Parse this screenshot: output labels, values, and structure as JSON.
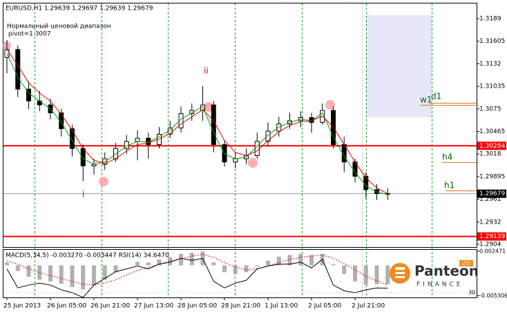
{
  "chart_data": {
    "type": "candlestick",
    "title": "EURUSD,H1  1.29639 1.29697 1.29639 1.29679",
    "annotations": [
      "Нормальный ценовой диапазон",
      "pivot=1.3007"
    ],
    "wave_labels": [
      "ii",
      "i"
    ],
    "level_labels": [
      "w1",
      "d1",
      "h4",
      "h1"
    ],
    "categories": [
      "25 Jun 2013",
      null,
      null,
      null,
      "26 Jun 05:00",
      null,
      null,
      null,
      "26 Jun 21:00",
      null,
      null,
      null,
      "27 Jun 13:00",
      null,
      null,
      null,
      "28 Jun 05:00",
      null,
      null,
      null,
      "28 Jun 21:00",
      null,
      null,
      null,
      "1 Jul 13:00",
      null,
      null,
      null,
      "2 Jul 05:00",
      null,
      null,
      null,
      "2 Jul 21:00",
      null,
      null,
      null
    ],
    "open": [
      1.314,
      1.315,
      1.31,
      1.3085,
      1.308,
      1.307,
      1.305,
      1.3025,
      1.3003,
      1.3005,
      1.3012,
      1.3025,
      1.3034,
      1.3038,
      1.303,
      1.3043,
      1.3051,
      1.3069,
      1.3073,
      1.308,
      1.303,
      1.3008,
      1.3012,
      1.3016,
      1.3034,
      1.3047,
      1.3056,
      1.306,
      1.3064,
      1.3058,
      1.3073,
      1.303,
      1.3008,
      1.299,
      1.2973,
      1.2968
    ],
    "high": [
      1.3162,
      1.3155,
      1.311,
      1.3098,
      1.3088,
      1.3075,
      1.3055,
      1.303,
      1.3012,
      1.302,
      1.3032,
      1.3042,
      1.3048,
      1.3045,
      1.3052,
      1.306,
      1.3078,
      1.3082,
      1.3104,
      1.3085,
      1.3035,
      1.302,
      1.3025,
      1.3045,
      1.3058,
      1.3065,
      1.307,
      1.3072,
      1.307,
      1.3082,
      1.3078,
      1.304,
      1.3012,
      1.2995,
      1.298,
      1.2975
    ],
    "low": [
      1.312,
      1.309,
      1.3075,
      1.3072,
      1.3062,
      1.304,
      1.3015,
      1.2984,
      1.2992,
      1.2998,
      1.3008,
      1.3018,
      1.301,
      1.3012,
      1.3025,
      1.3038,
      1.3045,
      1.306,
      1.306,
      1.302,
      1.3002,
      1.3,
      1.3005,
      1.3012,
      1.3028,
      1.304,
      1.305,
      1.3052,
      1.3045,
      1.3055,
      1.3025,
      1.2995,
      1.2982,
      1.2962,
      1.296,
      1.296
    ],
    "close": [
      1.315,
      1.31,
      1.3085,
      1.308,
      1.307,
      1.305,
      1.3025,
      1.3003,
      1.3005,
      1.3012,
      1.3025,
      1.3034,
      1.3038,
      1.303,
      1.3043,
      1.3051,
      1.3069,
      1.3073,
      1.308,
      1.303,
      1.3008,
      1.3012,
      1.3016,
      1.3034,
      1.3047,
      1.3056,
      1.306,
      1.3064,
      1.3058,
      1.3073,
      1.303,
      1.3008,
      1.299,
      1.2973,
      1.2968,
      1.29679
    ],
    "series": [
      {
        "color": "#00a000",
        "values": [
          1.3145,
          1.3115,
          1.3095,
          1.3085,
          1.3075,
          1.3058,
          1.3035,
          1.3012,
          1.3005,
          1.3008,
          1.3018,
          1.3028,
          1.3034,
          1.3033,
          1.304,
          1.3048,
          1.3062,
          1.307,
          1.3078,
          1.3045,
          1.3018,
          1.3012,
          1.3014,
          1.3028,
          1.3042,
          1.3052,
          1.3058,
          1.3062,
          1.306,
          1.307,
          1.304,
          1.3015,
          1.2995,
          1.2978,
          1.297,
          1.2967
        ]
      },
      {
        "color": "#e00000",
        "values": [
          1.315,
          1.313,
          1.3108,
          1.3095,
          1.3085,
          1.3068,
          1.3048,
          1.3025,
          1.301,
          1.3006,
          1.3012,
          1.3022,
          1.303,
          1.3032,
          1.3037,
          1.3044,
          1.3056,
          1.3065,
          1.3074,
          1.306,
          1.3035,
          1.302,
          1.3016,
          1.3022,
          1.3035,
          1.3046,
          1.3054,
          1.3059,
          1.306,
          1.3066,
          1.3052,
          1.303,
          1.3008,
          1.2988,
          1.2975,
          1.2968
        ]
      }
    ],
    "ylim": [
      1.29005,
      1.32082
    ],
    "yticks": [
      1.3189,
      1.31605,
      1.3132,
      1.31035,
      1.3075,
      1.30465,
      1.3018,
      1.29895,
      1.2961,
      1.2932,
      1.2904
    ],
    "price_levels": [
      {
        "value": 1.30284,
        "color": "#ff0000"
      },
      {
        "value": 1.29679,
        "color": "#000000"
      },
      {
        "value": 1.29139,
        "color": "#ff0000"
      }
    ],
    "indicator": {
      "title": "MACD(5,34,5) -0.003270 -0.003447  RSI(14) 34.6470",
      "macd": [
        0.0005,
        -0.001,
        -0.002,
        -0.0025,
        -0.0028,
        -0.0032,
        -0.0038,
        -0.0042,
        -0.0035,
        -0.0025,
        -0.0012,
        0.0,
        0.0006,
        0.0005,
        0.001,
        0.0014,
        0.002,
        0.0022,
        0.0024,
        0.0005,
        -0.0012,
        -0.0015,
        -0.0012,
        -0.0002,
        0.0008,
        0.0015,
        0.0018,
        0.002,
        0.0018,
        0.002,
        0.0002,
        -0.0015,
        -0.0028,
        -0.0034,
        -0.0033,
        -0.00327
      ],
      "signal": [
        0.0008,
        0.0002,
        -0.0006,
        -0.0013,
        -0.0018,
        -0.0023,
        -0.0028,
        -0.0033,
        -0.0034,
        -0.0031,
        -0.0025,
        -0.0017,
        -0.0009,
        -0.0004,
        0.0002,
        0.0007,
        0.0012,
        0.0016,
        0.0019,
        0.0014,
        0.0005,
        -0.0003,
        -0.0008,
        -0.0006,
        -0.0001,
        0.0005,
        0.001,
        0.0014,
        0.0016,
        0.0018,
        0.0012,
        0.0003,
        -0.0008,
        -0.0019,
        -0.0027,
        -0.003447
      ],
      "rsi": [
        55,
        35,
        38,
        40,
        38,
        33,
        30,
        25,
        38,
        45,
        52,
        55,
        58,
        55,
        60,
        62,
        66,
        64,
        66,
        42,
        35,
        40,
        43,
        55,
        58,
        60,
        60,
        62,
        56,
        65,
        38,
        32,
        30,
        33,
        35,
        34.647
      ],
      "y2lim": [
        -0.0056,
        0.0027
      ],
      "y2ticks": [
        0.002471,
        {
          "value": -0.005306,
          "label": "-0.005306"
        }
      ],
      "rsilim": [
        25,
        75
      ],
      "rsiticks": [
        30
      ]
    },
    "logo": {
      "name": "Panteon",
      "sub": "FINANCE",
      "badge": "LTD"
    }
  }
}
